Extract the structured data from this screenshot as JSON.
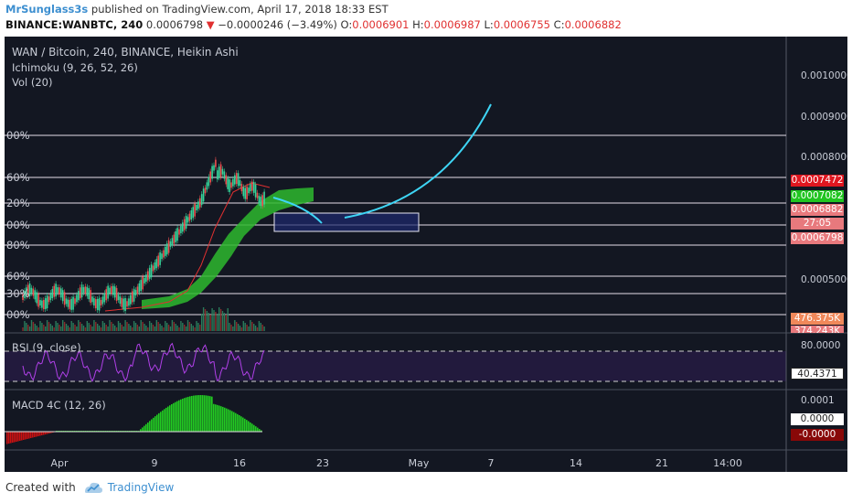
{
  "header": {
    "author": "MrSunglass3s",
    "published": "published on TradingView.com, April 17, 2018 18:33 EST",
    "symbol": "BINANCE:WANBTC, 240",
    "last": "0.0006798",
    "change_arrow": "▼",
    "change": "−0.0000246 (−3.49%)",
    "o_label": "O:",
    "o_value": "0.0006901",
    "h_label": "H:",
    "h_value": "0.0006987",
    "l_label": "L:",
    "l_value": "0.0006755",
    "c_label": "C:",
    "c_value": "0.0006882"
  },
  "legend": {
    "title": "WAN / Bitcoin, 240, BINANCE, Heikin Ashi",
    "ichimoku": "Ichimoku (9, 26, 52, 26)",
    "volume": "Vol (20)",
    "rsi": "RSI (9, close)",
    "macd": "MACD 4C (12, 26)"
  },
  "fib_labels": [
    "00%",
    "60%",
    "20%",
    "00%",
    "80%",
    "60%",
    "30%",
    "00%"
  ],
  "price_axis": [
    "0.0010000",
    "0.0009000",
    "0.0008000",
    "0.0005000"
  ],
  "price_tags": [
    {
      "text": "0.0007472",
      "color": "#e0161f"
    },
    {
      "text": "0.0007082",
      "color": "#20c520"
    },
    {
      "text": "0.0006882",
      "color": "#e8797d"
    },
    {
      "text": "27:05",
      "color": "#e8797d"
    },
    {
      "text": "0.0006798",
      "color": "#e8797d"
    },
    {
      "text": "476.375K",
      "color": "#f0885a"
    },
    {
      "text": "374.243K",
      "color": "#e8797d"
    }
  ],
  "rsi_axis": {
    "top": "80.0000",
    "value": "40.4371"
  },
  "macd_axis": {
    "top": "0.0001",
    "zero": "0.0000",
    "neg": "-0.0000"
  },
  "x_axis": [
    "Apr",
    "9",
    "16",
    "23",
    "May",
    "7",
    "14",
    "21",
    "14:00"
  ],
  "footer": {
    "created_with": "Created with",
    "brand": "TradingView"
  },
  "colors": {
    "up": "#36d39a",
    "down": "#ef4f4f",
    "cloud": "#2eb82e",
    "projection": "#3ed5f5",
    "rsi": "#b040e8",
    "macd_up": "#22cc22",
    "macd_down": "#cc1111"
  }
}
